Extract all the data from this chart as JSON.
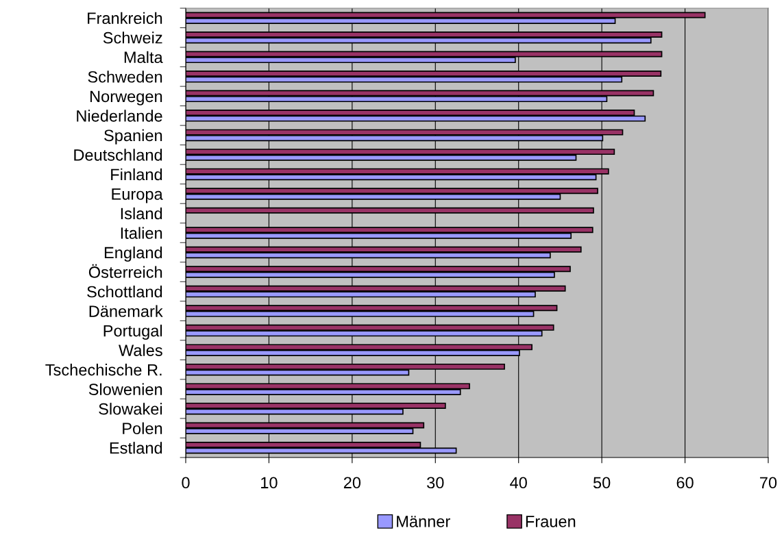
{
  "chart_data": {
    "type": "bar",
    "orientation": "horizontal",
    "categories": [
      "Frankreich",
      "Schweiz",
      "Malta",
      "Schweden",
      "Norwegen",
      "Niederlande",
      "Spanien",
      "Deutschland",
      "Finland",
      "Europa",
      "Island",
      "Italien",
      "England",
      "Österreich",
      "Schottland",
      "Dänemark",
      "Portugal",
      "Wales",
      "Tschechische R.",
      "Slowenien",
      "Slowakei",
      "Polen",
      "Estland"
    ],
    "series": [
      {
        "name": "Männer",
        "color": "#9999ff",
        "values": [
          51.6,
          55.9,
          39.6,
          52.4,
          50.6,
          55.2,
          50.1,
          46.9,
          49.3,
          45.0,
          null,
          46.3,
          43.8,
          44.3,
          42.0,
          41.8,
          42.8,
          40.1,
          26.8,
          33.0,
          26.1,
          27.3,
          32.5
        ]
      },
      {
        "name": "Frauen",
        "color": "#993366",
        "values": [
          62.4,
          57.2,
          57.2,
          57.1,
          56.2,
          53.9,
          52.5,
          51.5,
          50.8,
          49.5,
          49.0,
          48.9,
          47.5,
          46.2,
          45.6,
          44.6,
          44.2,
          41.6,
          38.3,
          34.1,
          31.2,
          28.6,
          28.2
        ]
      }
    ],
    "xlim": [
      0,
      70
    ],
    "xticks": [
      0,
      10,
      20,
      30,
      40,
      50,
      60,
      70
    ],
    "grid": "x",
    "legend": "bottom"
  }
}
